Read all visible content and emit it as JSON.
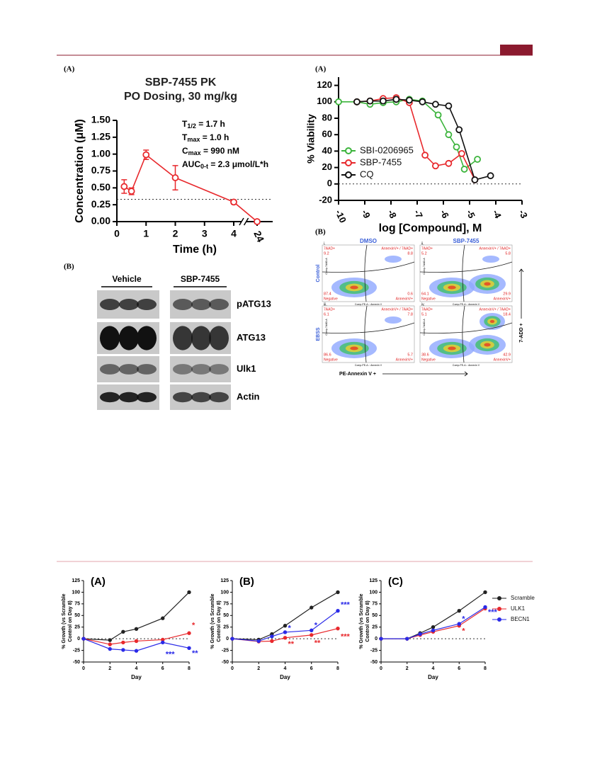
{
  "chart_data": [
    {
      "type": "line",
      "panel": "(A)",
      "title": "SBP-7455 PK",
      "subtitle": "PO Dosing, 30 mg/kg",
      "xlabel": "Time (h)",
      "ylabel": "Concentration (μM)",
      "x": [
        0.25,
        0.5,
        1,
        2,
        4,
        24
      ],
      "xlim": [
        0,
        24
      ],
      "xbreak": [
        4,
        24
      ],
      "xticks": [
        0,
        1,
        2,
        3,
        4,
        24
      ],
      "ylim": [
        0,
        1.5
      ],
      "yticks": [
        {
          "value": 0,
          "label": "0.00"
        },
        {
          "value": 0.25,
          "label": "0.25"
        },
        {
          "value": 0.5,
          "label": "0.50"
        },
        {
          "value": 0.75,
          "label": "0.75"
        },
        {
          "value": 1,
          "label": "1.00"
        },
        {
          "value": 1.25,
          "label": "1.25"
        },
        {
          "value": 1.5,
          "label": "1.50"
        }
      ],
      "reference_line": 0.33,
      "legend": false,
      "series": [
        {
          "color": "#e8292d",
          "values": [
            0.52,
            0.45,
            0.99,
            0.65,
            0.29,
            0.0
          ],
          "errors": [
            0.1,
            0.05,
            0.07,
            0.18,
            0.03,
            0.0
          ]
        }
      ],
      "annotations": [
        {
          "main": "T",
          "sub": "1/2",
          "rest": " = 1.7 h"
        },
        {
          "main": "T",
          "sub": "max",
          "rest": " = 1.0 h"
        },
        {
          "main": "C",
          "sub": "max",
          "rest": " = 990 nM"
        },
        {
          "main": "AUC",
          "sub": "0-t",
          "rest": " = 2.3 μmol/L*h"
        }
      ]
    },
    {
      "type": "line",
      "panel": "(A)",
      "xlabel": "log [Compound], M",
      "ylabel": "% Viability",
      "xlim": [
        -10,
        -3
      ],
      "xticks": [
        -10,
        -9,
        -8,
        -7,
        -6,
        -5,
        -4,
        -3
      ],
      "ylim": [
        -20,
        130
      ],
      "yticks": [
        -20,
        0,
        20,
        40,
        60,
        80,
        100,
        120
      ],
      "reference_line": 0,
      "legend": "upper-left-inside",
      "series": [
        {
          "name": "SBI-0206965",
          "color": "#3cb43c",
          "x": [
            -10,
            -9.3,
            -8.8,
            -8.3,
            -7.8,
            -7.3,
            -6.8,
            -6.2,
            -5.8,
            -5.5,
            -5.2,
            -4.7
          ],
          "values": [
            100,
            100,
            97,
            99,
            100,
            103,
            101,
            84,
            60,
            45,
            18,
            30
          ]
        },
        {
          "name": "SBP-7455",
          "color": "#e8292d",
          "x": [
            -9.3,
            -8.8,
            -8.3,
            -7.8,
            -7.3,
            -6.7,
            -6.3,
            -5.8,
            -5.3,
            -4.8
          ],
          "values": [
            100,
            101,
            104,
            105,
            99,
            35,
            22,
            25,
            37,
            5
          ]
        },
        {
          "name": "CQ",
          "color": "#111111",
          "x": [
            -9.3,
            -8.8,
            -8.3,
            -7.8,
            -7.3,
            -6.8,
            -6.3,
            -5.8,
            -5.4,
            -4.8,
            -4.2
          ],
          "values": [
            100,
            101,
            101,
            103,
            102,
            100,
            97,
            95,
            66,
            5,
            10
          ]
        }
      ]
    },
    {
      "type": "line",
      "title": "(A)",
      "xlabel": "Day",
      "ylabel": [
        "% Growth (vs Scramble",
        "Control on Day 8)"
      ],
      "x": [
        0,
        2,
        3,
        4,
        6,
        8
      ],
      "xlim": [
        0,
        8
      ],
      "xticks": [
        0,
        2,
        4,
        6,
        8
      ],
      "ylim": [
        -50,
        125
      ],
      "yticks": [
        -50,
        -25,
        0,
        25,
        50,
        75,
        100,
        125
      ],
      "reference_line": 0,
      "legend": false,
      "series": [
        {
          "color": "#222222",
          "values": [
            0,
            -3,
            15,
            21,
            44,
            100
          ]
        },
        {
          "color": "#e8292d",
          "values": [
            0,
            -12,
            -8,
            -5,
            -2,
            12
          ]
        },
        {
          "color": "#2a2ae8",
          "values": [
            0,
            -22,
            -24,
            -26,
            -8,
            -20
          ]
        }
      ],
      "annotations": [
        {
          "text": "*",
          "color": "#e8292d"
        },
        {
          "text": "***",
          "color": "#2a2ae8"
        },
        {
          "text": "**",
          "color": "#2a2ae8"
        }
      ]
    },
    {
      "type": "line",
      "title": "(B)",
      "xlabel": "Day",
      "ylabel": [
        "% Growth (vs Scramble",
        "Control on Day 8)"
      ],
      "x": [
        0,
        2,
        3,
        4,
        6,
        8
      ],
      "xlim": [
        0,
        8
      ],
      "xticks": [
        0,
        2,
        4,
        6,
        8
      ],
      "ylim": [
        -50,
        125
      ],
      "yticks": [
        -50,
        -25,
        0,
        25,
        50,
        75,
        100,
        125
      ],
      "reference_line": 0,
      "legend": false,
      "series": [
        {
          "color": "#222222",
          "values": [
            0,
            -2,
            10,
            28,
            67,
            100
          ]
        },
        {
          "color": "#e8292d",
          "values": [
            0,
            -6,
            -5,
            2,
            8,
            22
          ]
        },
        {
          "color": "#2a2ae8",
          "values": [
            0,
            -5,
            5,
            14,
            18,
            60
          ]
        }
      ],
      "annotations": [
        {
          "text": "*",
          "color": "#2a2ae8"
        },
        {
          "text": "*",
          "color": "#2a2ae8"
        },
        {
          "text": "***",
          "color": "#2a2ae8"
        },
        {
          "text": "**",
          "color": "#e8292d"
        },
        {
          "text": "**",
          "color": "#e8292d"
        },
        {
          "text": "***",
          "color": "#e8292d"
        }
      ]
    },
    {
      "type": "line",
      "title": "(C)",
      "xlabel": "Day",
      "ylabel": [
        "% Growth (vs Scramble",
        "Control on Day 8)"
      ],
      "x": [
        0,
        2,
        3,
        4,
        6,
        8
      ],
      "xlim": [
        0,
        8
      ],
      "xticks": [
        0,
        2,
        4,
        6,
        8
      ],
      "ylim": [
        -50,
        125
      ],
      "yticks": [
        -50,
        -25,
        0,
        25,
        50,
        75,
        100,
        125
      ],
      "reference_line": 0,
      "legend": "right-outside",
      "series": [
        {
          "name": "Scramble",
          "color": "#222222",
          "values": [
            0,
            0,
            12,
            25,
            60,
            100
          ]
        },
        {
          "name": "ULK1",
          "color": "#e8292d",
          "values": [
            0,
            0,
            8,
            15,
            28,
            65
          ]
        },
        {
          "name": "BECN1",
          "color": "#2a2ae8",
          "values": [
            0,
            0,
            10,
            18,
            32,
            68
          ]
        }
      ],
      "annotations": [
        {
          "text": "*",
          "color": "#2a2ae8"
        },
        {
          "text": "***",
          "color": "#2a2ae8"
        },
        {
          "text": "*",
          "color": "#e8292d"
        }
      ]
    }
  ],
  "blot": {
    "panel": "(B)",
    "groups": [
      "Vehicle",
      "SBP-7455"
    ],
    "bands": [
      "pATG13",
      "ATG13",
      "Ulk1",
      "Actin"
    ]
  },
  "flow": {
    "panel": "(B)",
    "columns": [
      "DMSO",
      "SBP-7455"
    ],
    "rows": [
      "Control",
      "EBSS"
    ],
    "x_axis": "PE-Annexin V +",
    "y_axis": "7-ADD +",
    "panel_x_label": "Comp-PE-A :: Annexin V",
    "panel_y_label": "Comp-7AAD-A",
    "quadrant_names": [
      "7AAD+",
      "AnnexinV+ / 7AAD+",
      "Negative",
      "AnnexinV+"
    ],
    "panels": [
      {
        "id": "i.",
        "values": [
          9.2,
          8.8,
          87.4,
          0.6
        ]
      },
      {
        "id": "ii.",
        "values": [
          5.2,
          5.8,
          64.1,
          29.9
        ]
      },
      {
        "id": "iii.",
        "values": [
          6.1,
          7.8,
          86.6,
          5.7
        ]
      },
      {
        "id": "iv.",
        "values": [
          5.1,
          18.4,
          38.6,
          42.9
        ]
      }
    ]
  }
}
